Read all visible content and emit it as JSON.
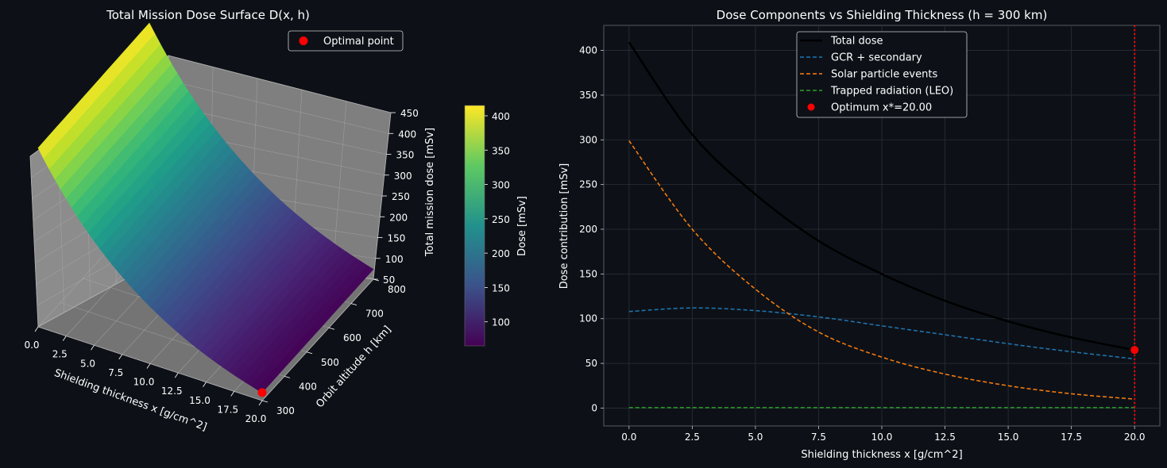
{
  "chart_data": [
    {
      "type": "surface3d",
      "title": "Total Mission Dose Surface D(x, h)",
      "xlabel": "Shielding thickness x [g/cm^2]",
      "ylabel": "Orbit altitude h [km]",
      "zlabel": "Total mission dose [mSv]",
      "x_ticks": [
        "0.0",
        "2.5",
        "5.0",
        "7.5",
        "10.0",
        "12.5",
        "15.0",
        "17.5",
        "20.0"
      ],
      "y_ticks": [
        "300",
        "400",
        "500",
        "600",
        "700",
        "800"
      ],
      "z_ticks": [
        "50",
        "100",
        "150",
        "200",
        "250",
        "300",
        "350",
        "400",
        "450"
      ],
      "xlim": [
        0,
        20
      ],
      "ylim": [
        300,
        800
      ],
      "zlim": [
        50,
        450
      ],
      "colorbar": {
        "label": "Dose [mSv]",
        "ticks": [
          "100",
          "150",
          "200",
          "250",
          "300",
          "350",
          "400"
        ],
        "range": [
          65,
          415
        ]
      },
      "optimal_point": {
        "x": 20,
        "h": 300,
        "dose": 66
      },
      "legend": {
        "label": "Optimal point",
        "color": "#ff0000",
        "position": "top-right"
      },
      "surface_corners": {
        "x0_h300": 408,
        "x20_h300": 66,
        "x0_h800": 415,
        "x20_h800": 70
      }
    },
    {
      "type": "line",
      "title": "Dose Components vs Shielding Thickness (h = 300 km)",
      "xlabel": "Shielding thickness x [g/cm^2]",
      "ylabel": "Dose contribution [mSv]",
      "x_ticks": [
        "0.0",
        "2.5",
        "5.0",
        "7.5",
        "10.0",
        "12.5",
        "15.0",
        "17.5",
        "20.0"
      ],
      "y_ticks": [
        "0",
        "50",
        "100",
        "150",
        "200",
        "250",
        "300",
        "350",
        "400"
      ],
      "xlim": [
        -1,
        21
      ],
      "ylim": [
        -20,
        428
      ],
      "grid": true,
      "legend_position": "top-center",
      "x": [
        0,
        2.5,
        5,
        7.5,
        10,
        12.5,
        15,
        17.5,
        20
      ],
      "series": [
        {
          "name": "Total dose",
          "color": "#000000",
          "style": "solid",
          "values": [
            409,
            306,
            239,
            187,
            150,
            120,
            97,
            79,
            65
          ]
        },
        {
          "name": "GCR + secondary",
          "color": "#1f77b4",
          "style": "dashed",
          "values": [
            108,
            112,
            109,
            102,
            92,
            82,
            72,
            63,
            55
          ]
        },
        {
          "name": "Solar particle events",
          "color": "#ff7f0e",
          "style": "dashed",
          "values": [
            299,
            200,
            133,
            85,
            57,
            38,
            25,
            16,
            10
          ]
        },
        {
          "name": "Trapped radiation (LEO)",
          "color": "#2ca02c",
          "style": "dashed",
          "values": [
            0.5,
            0.5,
            0.5,
            0.5,
            0.5,
            0.5,
            0.5,
            0.5,
            0.5
          ]
        }
      ],
      "optimum": {
        "label": "Optimum x*=20.00",
        "x": 20,
        "y": 65,
        "color": "#ff0000"
      },
      "vline": {
        "x": 20,
        "color": "#ff0000",
        "style": "dotted"
      }
    }
  ]
}
